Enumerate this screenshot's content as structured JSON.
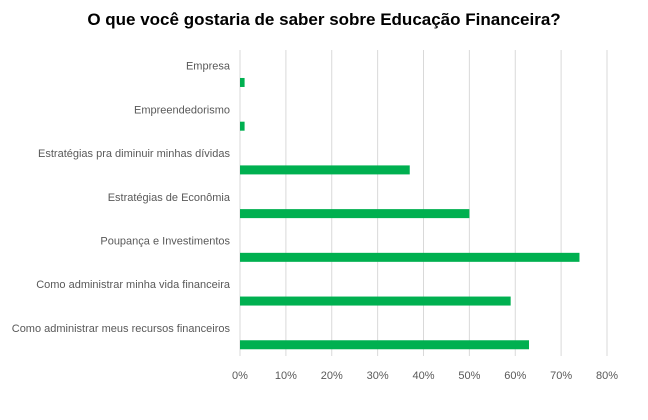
{
  "chart_data": {
    "type": "bar",
    "orientation": "horizontal",
    "title": "O que você gostaria de saber sobre Educação Financeira?",
    "categories": [
      "Empresa",
      "Empreendedorismo",
      "Estratégias pra diminuir minhas dívidas",
      "Estratégias de Econômia",
      "Poupança e Investimentos",
      "Como administrar minha vida financeira",
      "Como administrar meus recursos financeiros"
    ],
    "values": [
      1,
      1,
      37,
      50,
      74,
      59,
      63
    ],
    "value_unit": "%",
    "xlim": [
      0,
      80
    ],
    "x_ticks": [
      "0%",
      "10%",
      "20%",
      "30%",
      "40%",
      "50%",
      "60%",
      "70%",
      "80%"
    ],
    "grid": "vertical",
    "legend": "none",
    "bar_color": "#00b050",
    "grid_color": "#d9d9d9",
    "label_color": "#595959"
  }
}
